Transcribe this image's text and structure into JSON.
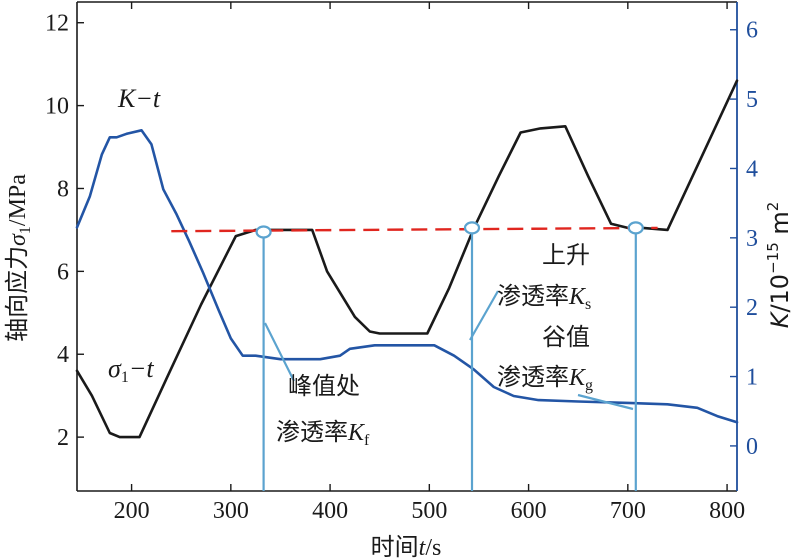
{
  "chart_data": {
    "type": "line",
    "xlabel": "时间t/s",
    "ylabel_left": "轴向应力σ1/MPa",
    "ylabel_right": "K/10−15 m2",
    "xlim": [
      145,
      810
    ],
    "ylim_left": [
      0.7,
      12.5
    ],
    "ylim_right": [
      -0.65,
      6.4
    ],
    "x_ticks": [
      200,
      300,
      400,
      500,
      600,
      700,
      800
    ],
    "y_left_ticks": [
      2,
      4,
      6,
      8,
      10,
      12
    ],
    "y_right_ticks": [
      0,
      1,
      2,
      3,
      4,
      5,
      6
    ],
    "series": [
      {
        "name": "σ1−t",
        "axis": "left",
        "color": "#1a1a1a",
        "points": [
          [
            145,
            3.6
          ],
          [
            160,
            3.0
          ],
          [
            178,
            2.1
          ],
          [
            188,
            2.0
          ],
          [
            208,
            2.0
          ],
          [
            235,
            3.4
          ],
          [
            270,
            5.2
          ],
          [
            305,
            6.85
          ],
          [
            325,
            7.0
          ],
          [
            350,
            7.0
          ],
          [
            382,
            7.0
          ],
          [
            397,
            6.0
          ],
          [
            425,
            4.9
          ],
          [
            440,
            4.55
          ],
          [
            450,
            4.5
          ],
          [
            498,
            4.5
          ],
          [
            520,
            5.6
          ],
          [
            545,
            7.05
          ],
          [
            570,
            8.3
          ],
          [
            592,
            9.35
          ],
          [
            612,
            9.45
          ],
          [
            637,
            9.5
          ],
          [
            660,
            8.3
          ],
          [
            683,
            7.15
          ],
          [
            700,
            7.05
          ],
          [
            715,
            7.05
          ],
          [
            740,
            7.0
          ],
          [
            775,
            8.8
          ],
          [
            810,
            10.6
          ]
        ]
      },
      {
        "name": "K−t",
        "axis": "right",
        "color": "#2355a5",
        "points": [
          [
            145,
            3.15
          ],
          [
            158,
            3.6
          ],
          [
            170,
            4.2
          ],
          [
            178,
            4.45
          ],
          [
            185,
            4.45
          ],
          [
            195,
            4.5
          ],
          [
            210,
            4.55
          ],
          [
            220,
            4.35
          ],
          [
            232,
            3.7
          ],
          [
            245,
            3.35
          ],
          [
            258,
            2.95
          ],
          [
            272,
            2.5
          ],
          [
            288,
            1.95
          ],
          [
            300,
            1.55
          ],
          [
            312,
            1.3
          ],
          [
            325,
            1.3
          ],
          [
            350,
            1.25
          ],
          [
            390,
            1.25
          ],
          [
            410,
            1.3
          ],
          [
            420,
            1.4
          ],
          [
            445,
            1.45
          ],
          [
            480,
            1.45
          ],
          [
            505,
            1.45
          ],
          [
            525,
            1.3
          ],
          [
            545,
            1.1
          ],
          [
            565,
            0.85
          ],
          [
            585,
            0.72
          ],
          [
            610,
            0.66
          ],
          [
            650,
            0.64
          ],
          [
            700,
            0.62
          ],
          [
            740,
            0.6
          ],
          [
            770,
            0.55
          ],
          [
            790,
            0.43
          ],
          [
            810,
            0.34
          ]
        ]
      },
      {
        "name": "",
        "axis": "left",
        "style": "dashed",
        "color": "#e0261f",
        "points": [
          [
            240,
            6.97
          ],
          [
            730,
            7.05
          ]
        ]
      }
    ],
    "markers": [
      {
        "x": 333,
        "y_left": 6.95
      },
      {
        "x": 543,
        "y_left": 7.05
      },
      {
        "x": 708,
        "y_left": 7.05
      }
    ],
    "annotations": {
      "k_curve": "K−t",
      "sigma_curve": "σ1−t",
      "peak_line1": "峰值处",
      "peak_line2": "渗透率Kf",
      "rise_line1": "上升",
      "rise_line2": "渗透率Ks",
      "valley_line1": "谷值",
      "valley_line2": "渗透率Kg"
    },
    "grid": false,
    "colors": {
      "left_axis": "#1a1a1a",
      "right_axis": "#1f4e9c",
      "pointer": "#5ba3cf",
      "dashed": "#e0261f"
    }
  }
}
